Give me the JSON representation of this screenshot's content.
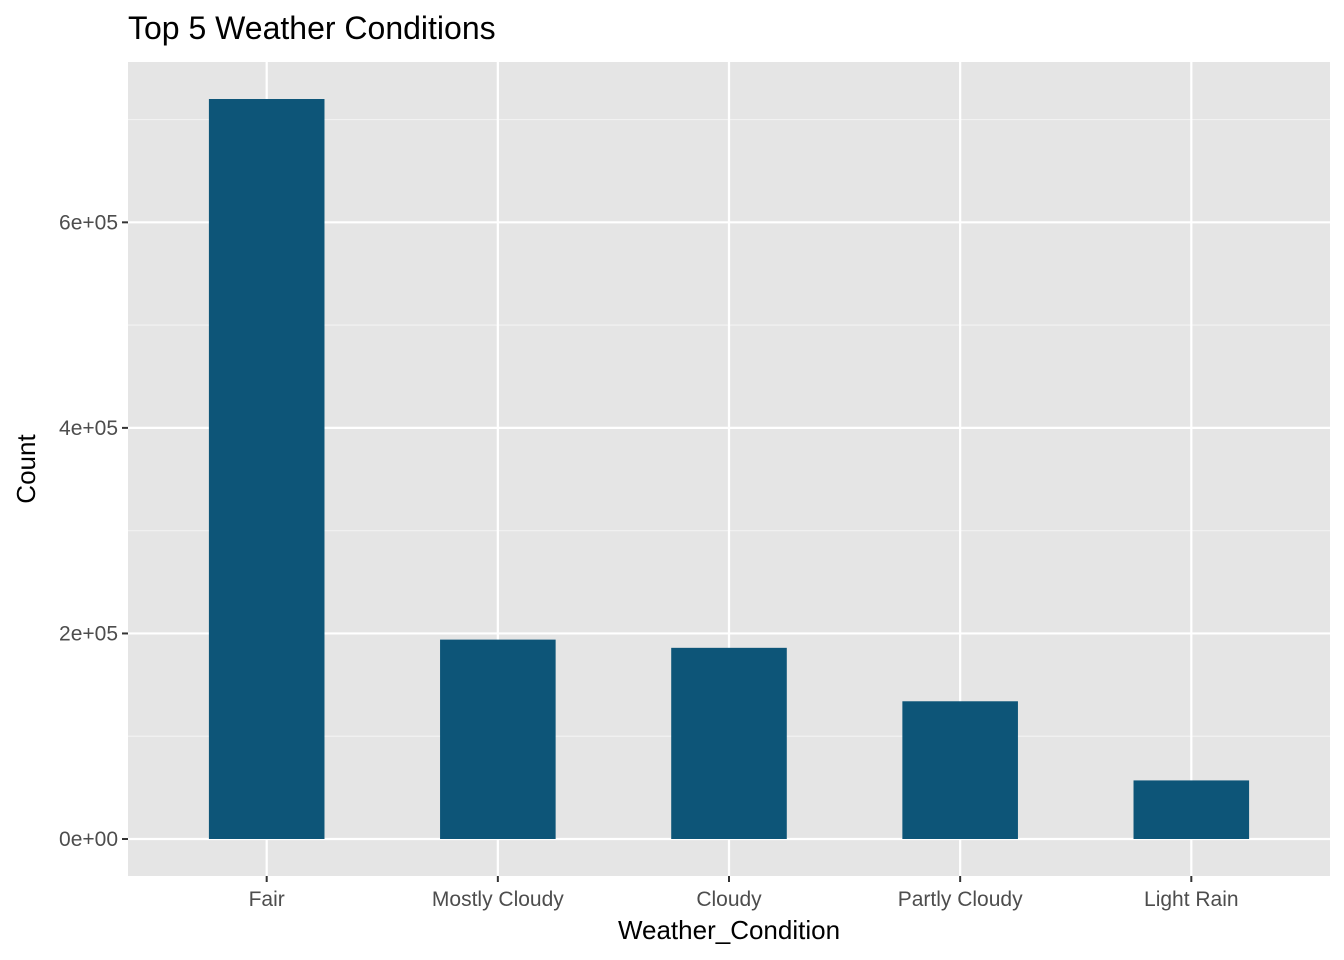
{
  "chart_data": {
    "type": "bar",
    "title": "Top 5 Weather Conditions",
    "xlabel": "Weather_Condition",
    "ylabel": "Count",
    "categories": [
      "Fair",
      "Mostly Cloudy",
      "Cloudy",
      "Partly Cloudy",
      "Light Rain"
    ],
    "values": [
      720000,
      194000,
      186000,
      134000,
      57000
    ],
    "ylim": [
      -36000,
      756000
    ],
    "y_ticks": [
      0,
      200000,
      400000,
      600000
    ],
    "y_tick_labels": [
      "0e+00",
      "2e+05",
      "4e+05",
      "6e+05"
    ],
    "grid": true,
    "legend": "none",
    "colors": {
      "bar": "#0d5578",
      "panel": "#e5e5e5",
      "grid_major": "#ffffff",
      "grid_minor": "#f2f2f2",
      "tick": "#333333",
      "tick_label": "#4d4d4d"
    }
  }
}
